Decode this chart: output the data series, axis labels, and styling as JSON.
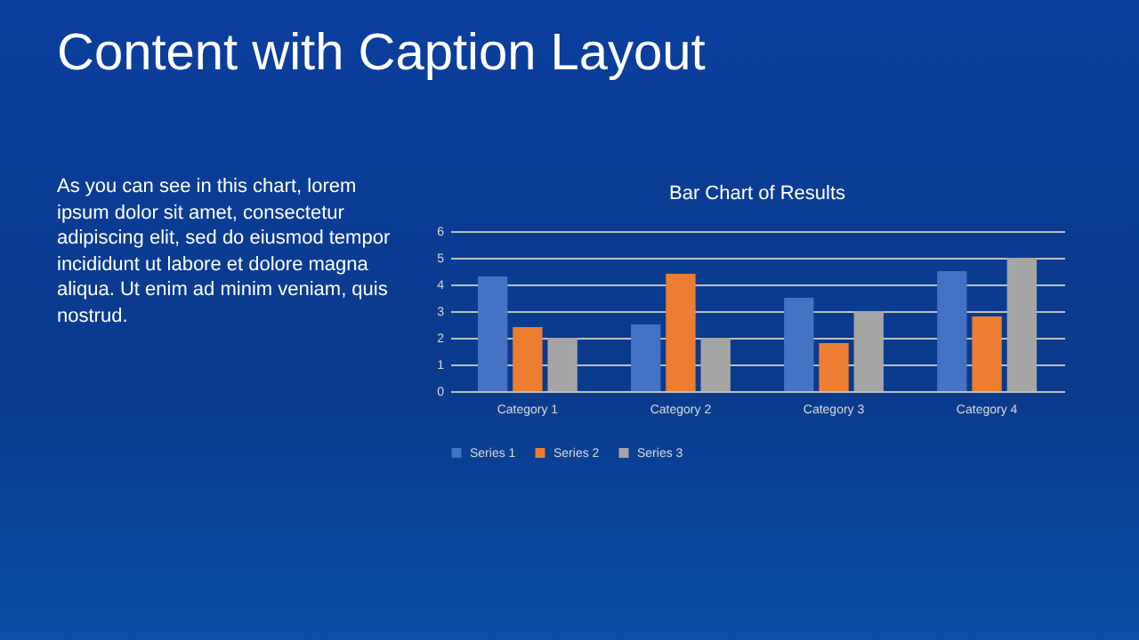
{
  "chart_data": {
    "type": "bar",
    "title": "Bar Chart of Results",
    "annotations": [
      "Content with Caption Layout",
      "As you can see in this chart, lorem ipsum dolor sit amet, consectetur adipiscing elit, sed do eiusmod tempor incididunt ut labore et dolore magna aliqua. Ut enim ad minim veniam, quis nostrud."
    ],
    "categories": [
      "Category 1",
      "Category 2",
      "Category 3",
      "Category 4"
    ],
    "series": [
      {
        "name": "Series 1",
        "color": "#4472c4",
        "values": [
          4.3,
          2.5,
          3.5,
          4.5
        ]
      },
      {
        "name": "Series 2",
        "color": "#ed7d31",
        "values": [
          2.4,
          4.4,
          1.8,
          2.8
        ]
      },
      {
        "name": "Series 3",
        "color": "#a5a5a5",
        "values": [
          2,
          2,
          3,
          5
        ]
      }
    ],
    "ylim": [
      0,
      6
    ],
    "yticks": [
      0,
      1,
      2,
      3,
      4,
      5,
      6
    ],
    "grid": "y",
    "legend": "bottom"
  }
}
